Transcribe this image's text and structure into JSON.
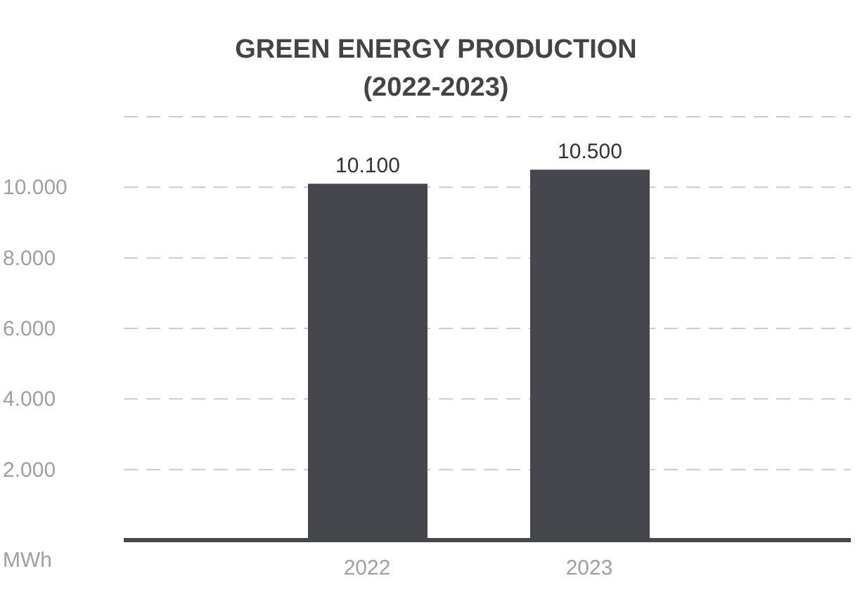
{
  "chart_data": {
    "type": "bar",
    "title": "GREEN ENERGY PRODUCTION (2022-2023)",
    "ylabel": "MWh",
    "categories": [
      "2022",
      "2023"
    ],
    "values": [
      10100,
      10500
    ],
    "color": "#45474d",
    "value_labels": [
      "10.100",
      "10.500"
    ],
    "ylim": [
      0,
      12000
    ],
    "yticks": [
      {
        "value": 2000,
        "label": "2.000"
      },
      {
        "value": 4000,
        "label": "4.000"
      },
      {
        "value": 6000,
        "label": "6.000"
      },
      {
        "value": 8000,
        "label": "8.000"
      },
      {
        "value": 10000,
        "label": "10.000"
      }
    ],
    "grid": "y"
  }
}
